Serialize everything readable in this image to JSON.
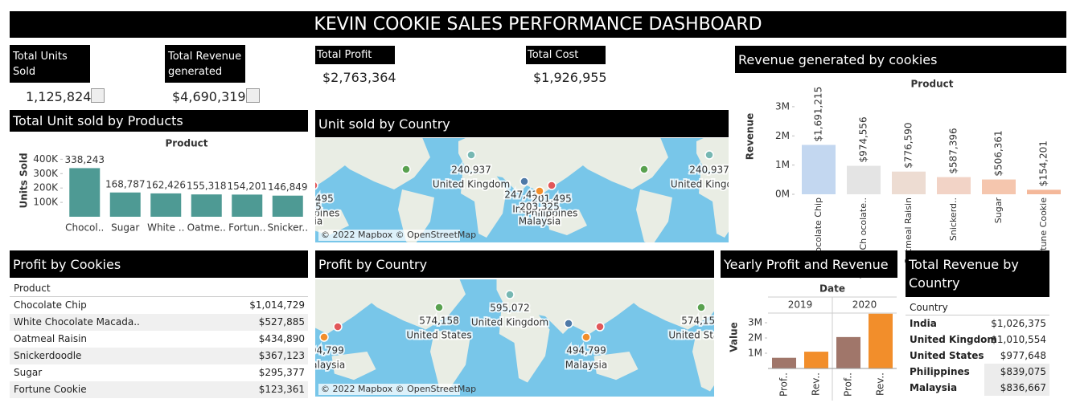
{
  "header": {
    "title": "KEVIN COOKIE SALES PERFORMANCE DASHBOARD"
  },
  "kpis": [
    {
      "label": "Total Units Sold",
      "value": "1,125,824"
    },
    {
      "label": "Total Revenue generated",
      "value": "$4,690,319"
    },
    {
      "label": "Total Profit",
      "value": "$2,763,364"
    },
    {
      "label": "Total Cost",
      "value": "$1,926,955"
    }
  ],
  "chart_data": [
    {
      "type": "bar",
      "title": "Total Unit sold by Products",
      "column_header": "Product",
      "y_label": "Units Sold",
      "categories": [
        "Chocol..",
        "Sugar",
        "White ..",
        "Oatme..",
        "Fortun..",
        "Snicker.."
      ],
      "values": [
        338243,
        168787,
        162426,
        155318,
        154201,
        146849
      ],
      "value_labels": [
        "338,243",
        "168,787",
        "162,426",
        "155,318",
        "154,201",
        "146,849"
      ],
      "color": "#4e9a94",
      "ylim": [
        0,
        430000
      ],
      "yticks": [
        {
          "value": 100000,
          "label": "100K"
        },
        {
          "value": 200000,
          "label": "200K"
        },
        {
          "value": 300000,
          "label": "300K"
        },
        {
          "value": 400000,
          "label": "400K"
        }
      ]
    },
    {
      "type": "bar",
      "title": "Revenue generated by cookies",
      "column_header": "Product",
      "y_label": "Revenue",
      "categories": [
        "Chocolate Chip",
        "White Ch ocolate..",
        "Oatmeal Raisin",
        "Snickerd..",
        "Sugar",
        "Fortune Cookie"
      ],
      "values": [
        1691215,
        974556,
        776590,
        587396,
        506361,
        154201
      ],
      "value_labels": [
        "$1,691,215",
        "$974,556",
        "$776,590",
        "$587,396",
        "$506,361",
        "$154,201"
      ],
      "colors": [
        "#c3d7f0",
        "#e4e4e4",
        "#eddcd2",
        "#f2d3c6",
        "#f5c6ae",
        "#f4b89a"
      ],
      "ylim": [
        0,
        3300000
      ],
      "yticks": [
        {
          "value": 0,
          "label": "0M"
        },
        {
          "value": 1000000,
          "label": "1M"
        },
        {
          "value": 2000000,
          "label": "2M"
        },
        {
          "value": 3000000,
          "label": "3M"
        }
      ]
    },
    {
      "type": "grouped_bar",
      "title": "Yearly Profit and Revenue",
      "column_header": "Date",
      "y_label": "Value",
      "groups": [
        "2019",
        "2020"
      ],
      "categories": [
        "Prof..",
        "Rev.."
      ],
      "series": [
        {
          "color": "#a0766a",
          "values": [
            700000,
            2060000
          ]
        },
        {
          "color": "#f28e2b",
          "values": [
            1100000,
            3590000
          ]
        }
      ],
      "ylim": [
        0,
        4000000
      ],
      "yticks": [
        {
          "value": 1000000,
          "label": "1M"
        },
        {
          "value": 2000000,
          "label": "2M"
        },
        {
          "value": 3000000,
          "label": "3M"
        }
      ]
    }
  ],
  "maps": [
    {
      "title": "Unit sold by Country",
      "attribution": "© 2022 Mapbox © OpenStreetMap",
      "points": [
        {
          "country": "United Kingdom",
          "value": "240,937",
          "color": "#76b7b2"
        },
        {
          "country": "India",
          "value": "247,435",
          "color": "#4e79a7"
        },
        {
          "country": "Philippines",
          "value": "201,495",
          "color": "#e15759"
        },
        {
          "country": "Malaysia",
          "value": "203,325",
          "color": "#f28e2b"
        },
        {
          "color": "#59a14f"
        }
      ]
    },
    {
      "title": "Profit by Country",
      "attribution": "© 2022 Mapbox © OpenStreetMap",
      "points": [
        {
          "country": "United States",
          "value": "574,158",
          "color": "#59a14f"
        },
        {
          "country": "United Kingdom",
          "value": "595,072",
          "color": "#76b7b2"
        },
        {
          "country": "Malaysia",
          "value": "494,799",
          "color": "#f28e2b"
        },
        {
          "color": "#4e79a7"
        },
        {
          "color": "#e15759"
        }
      ]
    }
  ],
  "tables": [
    {
      "title": "Profit by Cookies",
      "header": "Product",
      "rows": [
        [
          "Chocolate Chip",
          "$1,014,729"
        ],
        [
          "White Chocolate Macada..",
          "$527,885"
        ],
        [
          "Oatmeal Raisin",
          "$434,890"
        ],
        [
          "Snickerdoodle",
          "$367,123"
        ],
        [
          "Sugar",
          "$295,377"
        ],
        [
          "Fortune Cookie",
          "$123,361"
        ]
      ]
    },
    {
      "title": "Total Revenue by Country",
      "header": "Country",
      "rows": [
        [
          "India",
          "$1,026,375"
        ],
        [
          "United Kingdom",
          "$1,010,554"
        ],
        [
          "United States",
          "$977,648"
        ],
        [
          "Philippines",
          "$839,075"
        ],
        [
          "Malaysia",
          "$836,667"
        ]
      ]
    }
  ]
}
